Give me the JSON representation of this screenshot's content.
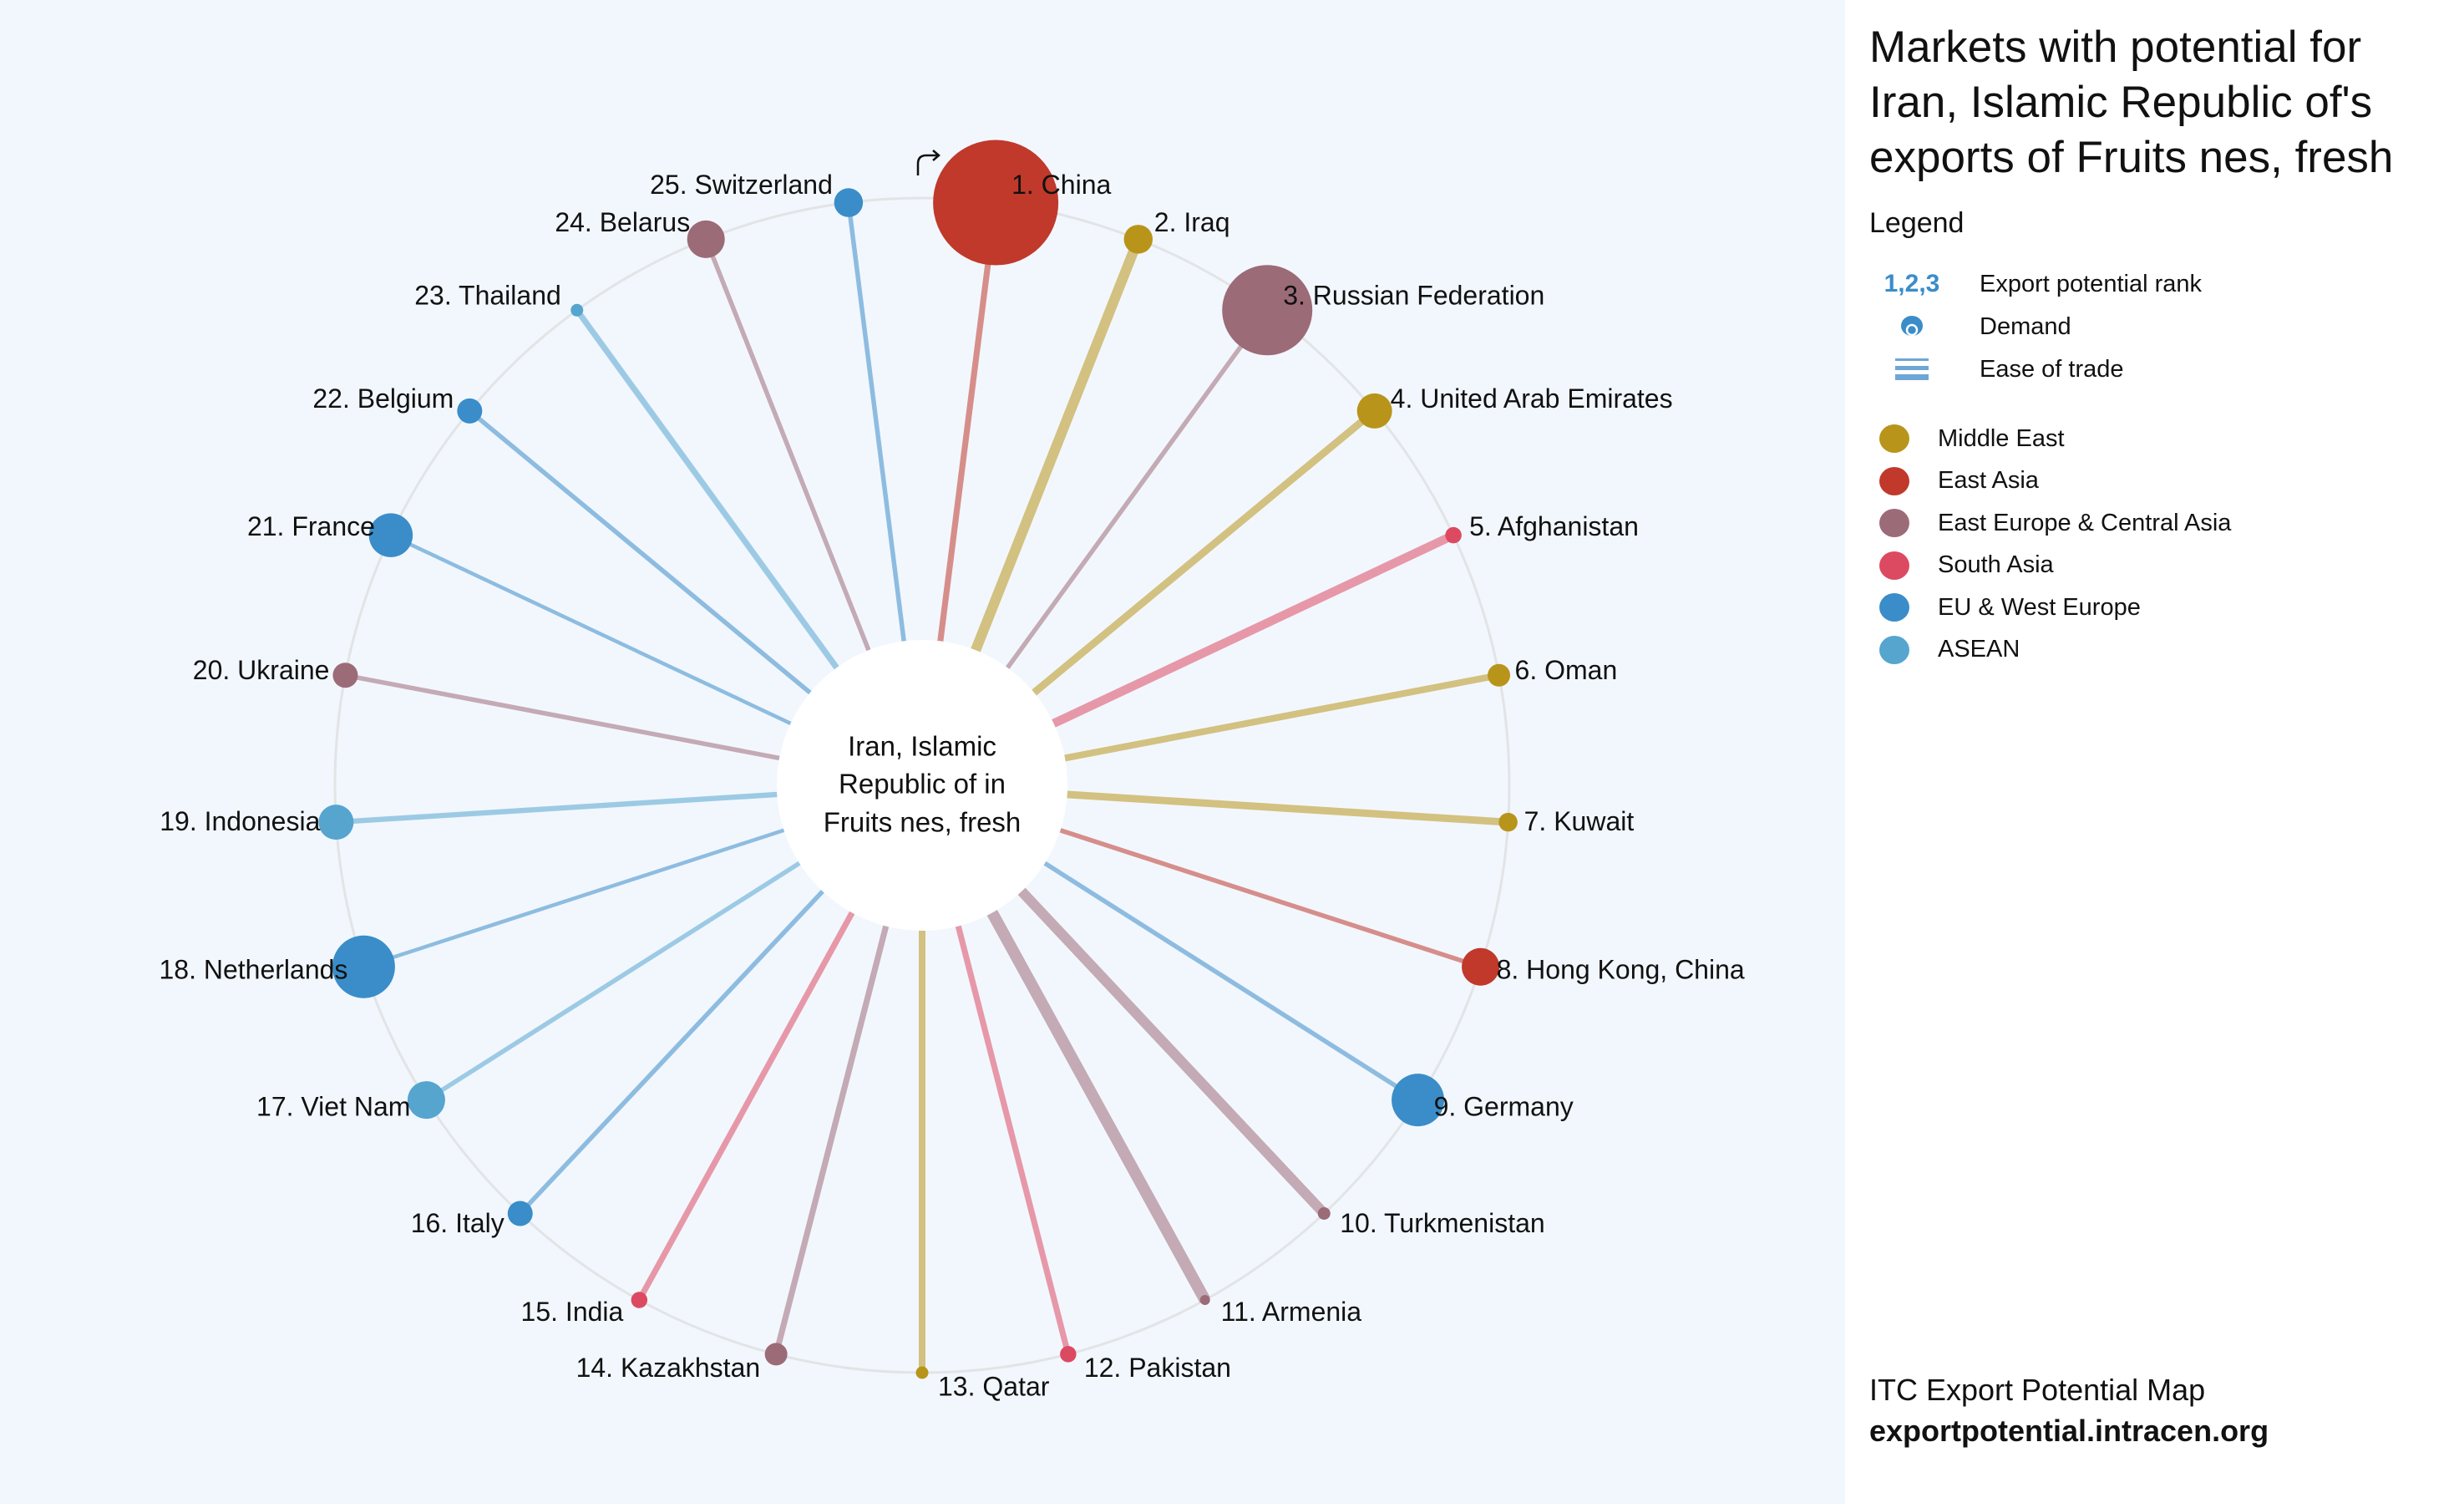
{
  "panel": {
    "title": "Markets with potential for Iran, Islamic Republic of's exports of Fruits nes, fresh",
    "legend_heading": "Legend",
    "legend_items": [
      {
        "symbol": "1,2,3",
        "label": "Export potential rank"
      },
      {
        "symbol": "demand-circle-icon",
        "label": "Demand"
      },
      {
        "symbol": "ease-of-trade-lines-icon",
        "label": "Ease of trade"
      }
    ],
    "footer_title": "ITC Export Potential Map",
    "footer_url": "exportpotential.intracen.org"
  },
  "chart_data": {
    "type": "radial-network",
    "center_label": [
      "Iran, Islamic",
      "Republic of in",
      "Fruits nes, fresh"
    ],
    "regions": [
      {
        "name": "Middle East",
        "color": "#b8951a"
      },
      {
        "name": "East Asia",
        "color": "#c0392b"
      },
      {
        "name": "East Europe & Central Asia",
        "color": "#9c6b78"
      },
      {
        "name": "South Asia",
        "color": "#dc4a62"
      },
      {
        "name": "EU & West Europe",
        "color": "#3a8dc8"
      },
      {
        "name": "ASEAN",
        "color": "#55a5cf"
      }
    ],
    "markets": [
      {
        "rank": 1,
        "name": "China",
        "region": 1,
        "demand": 1.0,
        "ease": 0.43
      },
      {
        "rank": 2,
        "name": "Iraq",
        "region": 0,
        "demand": 0.23,
        "ease": 0.86
      },
      {
        "rank": 3,
        "name": "Russian Federation",
        "region": 2,
        "demand": 0.72,
        "ease": 0.29
      },
      {
        "rank": 4,
        "name": "United Arab Emirates",
        "region": 0,
        "demand": 0.28,
        "ease": 0.57
      },
      {
        "rank": 5,
        "name": "Afghanistan",
        "region": 3,
        "demand": 0.13,
        "ease": 0.71
      },
      {
        "rank": 6,
        "name": "Oman",
        "region": 0,
        "demand": 0.18,
        "ease": 0.5
      },
      {
        "rank": 7,
        "name": "Kuwait",
        "region": 0,
        "demand": 0.15,
        "ease": 0.57
      },
      {
        "rank": 8,
        "name": "Hong Kong, China",
        "region": 1,
        "demand": 0.3,
        "ease": 0.29
      },
      {
        "rank": 9,
        "name": "Germany",
        "region": 4,
        "demand": 0.42,
        "ease": 0.29
      },
      {
        "rank": 10,
        "name": "Turkmenistan",
        "region": 2,
        "demand": 0.1,
        "ease": 0.86
      },
      {
        "rank": 11,
        "name": "Armenia",
        "region": 2,
        "demand": 0.08,
        "ease": 1.0
      },
      {
        "rank": 12,
        "name": "Pakistan",
        "region": 3,
        "demand": 0.13,
        "ease": 0.43
      },
      {
        "rank": 13,
        "name": "Qatar",
        "region": 0,
        "demand": 0.1,
        "ease": 0.5
      },
      {
        "rank": 14,
        "name": "Kazakhstan",
        "region": 2,
        "demand": 0.18,
        "ease": 0.43
      },
      {
        "rank": 15,
        "name": "India",
        "region": 3,
        "demand": 0.13,
        "ease": 0.43
      },
      {
        "rank": 16,
        "name": "Italy",
        "region": 4,
        "demand": 0.2,
        "ease": 0.29
      },
      {
        "rank": 17,
        "name": "Viet Nam",
        "region": 5,
        "demand": 0.3,
        "ease": 0.29
      },
      {
        "rank": 18,
        "name": "Netherlands",
        "region": 4,
        "demand": 0.5,
        "ease": 0.21
      },
      {
        "rank": 19,
        "name": "Indonesia",
        "region": 5,
        "demand": 0.28,
        "ease": 0.36
      },
      {
        "rank": 20,
        "name": "Ukraine",
        "region": 2,
        "demand": 0.2,
        "ease": 0.29
      },
      {
        "rank": 21,
        "name": "France",
        "region": 4,
        "demand": 0.35,
        "ease": 0.21
      },
      {
        "rank": 22,
        "name": "Belgium",
        "region": 4,
        "demand": 0.2,
        "ease": 0.29
      },
      {
        "rank": 23,
        "name": "Thailand",
        "region": 5,
        "demand": 0.1,
        "ease": 0.43
      },
      {
        "rank": 24,
        "name": "Belarus",
        "region": 2,
        "demand": 0.3,
        "ease": 0.29
      },
      {
        "rank": 25,
        "name": "Switzerland",
        "region": 4,
        "demand": 0.23,
        "ease": 0.29
      }
    ]
  }
}
